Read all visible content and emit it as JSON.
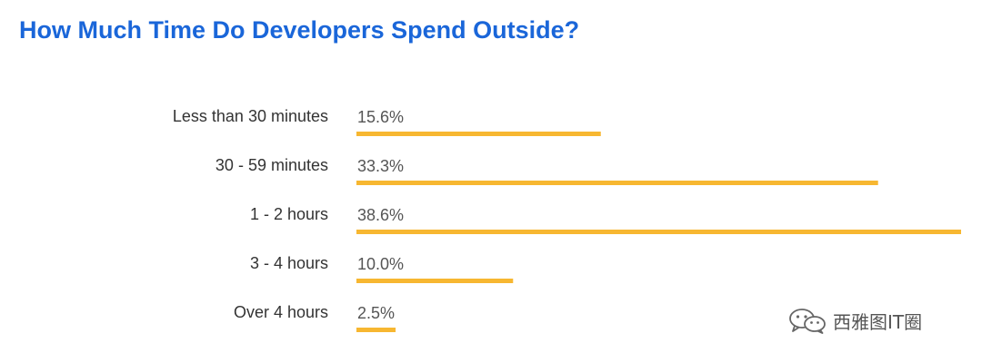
{
  "title": "How Much Time Do Developers Spend Outside?",
  "watermark": {
    "text": "西雅图IT圈",
    "icon": "wechat-icon"
  },
  "colors": {
    "title": "#1a66d9",
    "bar": "#f7b731",
    "label": "#333333",
    "value": "#555555"
  },
  "chart_data": {
    "type": "bar",
    "orientation": "horizontal",
    "categories": [
      "Less than 30 minutes",
      "30 - 59 minutes",
      "1 - 2 hours",
      "3 - 4 hours",
      "Over 4 hours"
    ],
    "values": [
      15.6,
      33.3,
      38.6,
      10.0,
      2.5
    ],
    "value_labels": [
      "15.6%",
      "33.3%",
      "38.6%",
      "10.0%",
      "2.5%"
    ],
    "title": "How Much Time Do Developers Spend Outside?",
    "xlabel": "",
    "ylabel": "",
    "xlim": [
      0,
      38.6
    ],
    "grid": false,
    "legend": "none"
  }
}
